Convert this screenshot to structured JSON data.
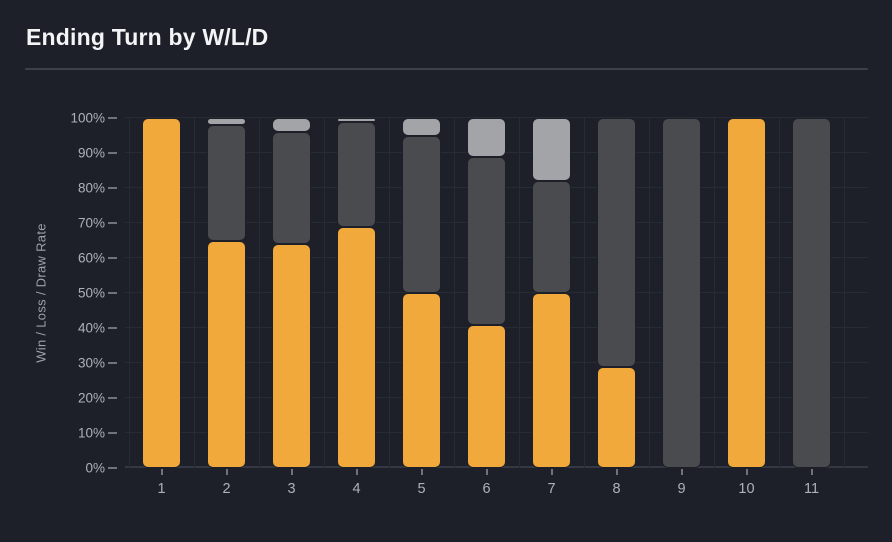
{
  "title": "Ending Turn by W/L/D",
  "y_axis": {
    "label": "Win / Loss / Draw Rate",
    "ticks": [
      "0%",
      "10%",
      "20%",
      "30%",
      "40%",
      "50%",
      "60%",
      "70%",
      "80%",
      "90%",
      "100%"
    ]
  },
  "x_axis": {
    "labels": [
      "1",
      "2",
      "3",
      "4",
      "5",
      "6",
      "7",
      "8",
      "9",
      "10",
      "11"
    ]
  },
  "chart_data": {
    "type": "bar",
    "stacked": true,
    "title": "Ending Turn by W/L/D",
    "xlabel": "",
    "ylabel": "Win / Loss / Draw Rate",
    "ylim": [
      0,
      100
    ],
    "grid": true,
    "legend": false,
    "categories": [
      "1",
      "2",
      "3",
      "4",
      "5",
      "6",
      "7",
      "8",
      "9",
      "10",
      "11"
    ],
    "series": [
      {
        "name": "Win",
        "color": "#f2a93c",
        "values": [
          100,
          65,
          64,
          69,
          50,
          41,
          50,
          29,
          0,
          100,
          0
        ]
      },
      {
        "name": "Loss",
        "color": "#4a4b4f",
        "values": [
          0,
          33,
          32,
          30,
          45,
          48,
          32,
          71,
          100,
          0,
          100
        ]
      },
      {
        "name": "Draw",
        "color": "#a3a4a7",
        "values": [
          0,
          2,
          4,
          1,
          5,
          11,
          18,
          0,
          0,
          0,
          0
        ]
      }
    ]
  },
  "colors": {
    "background": "#1e2029",
    "title_text": "#f3f4f6",
    "divider": "#3d4049",
    "grid": "#272b34",
    "axis_line": "#343842",
    "tick": "#70737b",
    "label_text": "#aeb1b8",
    "axis_title_text": "#9da1a9",
    "win": "#f2a93c",
    "loss": "#4a4b4f",
    "draw": "#a3a4a7"
  }
}
